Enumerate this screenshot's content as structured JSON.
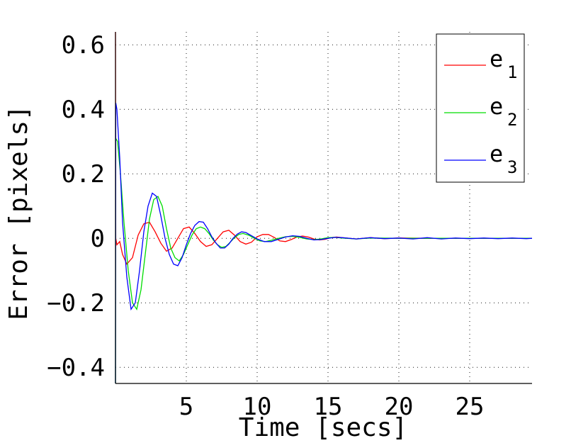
{
  "chart_data": {
    "type": "line",
    "title": "",
    "xlabel": "Time [secs]",
    "ylabel": "Error [pixels]",
    "xlim": [
      0,
      29.4
    ],
    "ylim": [
      -0.45,
      0.64
    ],
    "xticks": [
      5,
      10,
      15,
      20,
      25
    ],
    "xtick_labels": [
      "5",
      "10",
      "15",
      "20",
      "25"
    ],
    "yticks": [
      0.6,
      0.4,
      0.2,
      0,
      -0.2,
      -0.4
    ],
    "ytick_labels": [
      "0.6",
      "0.4",
      "0.2",
      "0",
      "−0.2",
      "−0.4"
    ],
    "grid": true,
    "legend_position": "top-right",
    "series": [
      {
        "name": "e1",
        "label_base": "e",
        "label_sub": "1",
        "color": "#ff0000",
        "x": [
          0,
          0.02,
          0.1,
          0.3,
          0.5,
          0.8,
          1.2,
          1.6,
          2.0,
          2.4,
          2.8,
          3.2,
          3.6,
          4.0,
          4.4,
          4.8,
          5.2,
          5.6,
          6.0,
          6.4,
          6.8,
          7.2,
          7.6,
          8.0,
          8.4,
          8.8,
          9.2,
          9.6,
          10.0,
          10.4,
          10.8,
          11.2,
          11.6,
          12.0,
          12.4,
          12.8,
          13.2,
          13.6,
          14.0,
          14.4,
          14.8,
          15.2,
          15.6,
          16.0,
          17.0,
          18.0,
          19.0,
          20.0,
          22.0,
          24.0,
          26.0,
          28.0,
          29.4
        ],
        "y": [
          0.64,
          0.0,
          -0.02,
          -0.01,
          -0.05,
          -0.08,
          -0.06,
          0.01,
          0.045,
          0.05,
          0.02,
          -0.015,
          -0.04,
          -0.03,
          0.0,
          0.03,
          0.035,
          0.015,
          -0.01,
          -0.025,
          -0.02,
          0.0,
          0.02,
          0.025,
          0.01,
          -0.01,
          -0.018,
          -0.012,
          0.005,
          0.012,
          0.012,
          0.003,
          -0.008,
          -0.01,
          -0.004,
          0.004,
          0.007,
          0.004,
          -0.002,
          -0.005,
          -0.003,
          0.002,
          0.004,
          0.002,
          -0.002,
          0.002,
          -0.001,
          0.001,
          0.0,
          0.0,
          0.0,
          0.0,
          0.0
        ]
      },
      {
        "name": "e2",
        "label_base": "e",
        "label_sub": "2",
        "color": "#00dd00",
        "x": [
          0,
          0.02,
          0.15,
          0.35,
          0.6,
          0.9,
          1.2,
          1.5,
          1.8,
          2.1,
          2.4,
          2.7,
          3.0,
          3.3,
          3.6,
          3.9,
          4.2,
          4.5,
          4.8,
          5.1,
          5.4,
          5.7,
          6.0,
          6.3,
          6.6,
          6.9,
          7.2,
          7.5,
          7.8,
          8.1,
          8.4,
          8.7,
          9.0,
          9.4,
          9.8,
          10.2,
          10.6,
          11.0,
          11.5,
          12.0,
          12.5,
          13.0,
          13.5,
          14.0,
          14.5,
          15.0,
          15.5,
          16.0,
          17.0,
          18.0,
          20.0,
          22.0,
          24.0,
          26.0,
          28.0,
          29.4
        ],
        "y": [
          -0.45,
          0.31,
          0.3,
          0.2,
          0.05,
          -0.1,
          -0.2,
          -0.22,
          -0.16,
          -0.05,
          0.06,
          0.12,
          0.13,
          0.1,
          0.03,
          -0.03,
          -0.06,
          -0.07,
          -0.05,
          -0.02,
          0.01,
          0.03,
          0.035,
          0.03,
          0.015,
          -0.005,
          -0.02,
          -0.028,
          -0.025,
          -0.012,
          0.002,
          0.012,
          0.015,
          0.01,
          0.0,
          -0.008,
          -0.01,
          -0.006,
          0.0,
          0.005,
          0.006,
          0.003,
          -0.002,
          -0.004,
          -0.002,
          0.002,
          0.003,
          0.001,
          -0.002,
          0.001,
          0.0,
          0.0,
          0.0,
          0.0,
          0.0,
          0.0
        ]
      },
      {
        "name": "e3",
        "label_base": "e",
        "label_sub": "3",
        "color": "#0000ff",
        "x": [
          0,
          0.02,
          0.1,
          0.3,
          0.5,
          0.8,
          1.1,
          1.4,
          1.7,
          2.0,
          2.3,
          2.6,
          2.9,
          3.2,
          3.5,
          3.8,
          4.1,
          4.4,
          4.7,
          5.0,
          5.3,
          5.6,
          5.9,
          6.2,
          6.5,
          6.8,
          7.1,
          7.4,
          7.7,
          8.0,
          8.3,
          8.6,
          8.9,
          9.2,
          9.6,
          10.0,
          10.5,
          11.0,
          11.5,
          12.0,
          12.5,
          13.0,
          13.5,
          14.0,
          14.5,
          15.0,
          15.5,
          16.0,
          17.0,
          18.0,
          19.0,
          20.0,
          21.0,
          22.0,
          23.0,
          24.0,
          25.0,
          26.0,
          27.0,
          28.0,
          29.0,
          29.4
        ],
        "y": [
          -0.45,
          0.42,
          0.4,
          0.25,
          0.05,
          -0.12,
          -0.22,
          -0.2,
          -0.1,
          0.02,
          0.1,
          0.14,
          0.13,
          0.07,
          0.0,
          -0.05,
          -0.08,
          -0.085,
          -0.06,
          -0.02,
          0.015,
          0.04,
          0.052,
          0.05,
          0.03,
          0.005,
          -0.015,
          -0.03,
          -0.03,
          -0.018,
          0.0,
          0.013,
          0.02,
          0.018,
          0.008,
          -0.002,
          -0.01,
          -0.01,
          -0.003,
          0.004,
          0.008,
          0.006,
          0.0,
          -0.005,
          -0.004,
          0.0,
          0.003,
          0.002,
          -0.002,
          0.002,
          -0.001,
          0.001,
          -0.002,
          0.002,
          -0.002,
          0.001,
          -0.001,
          0.001,
          -0.001,
          0.001,
          -0.001,
          0.0
        ]
      }
    ]
  }
}
